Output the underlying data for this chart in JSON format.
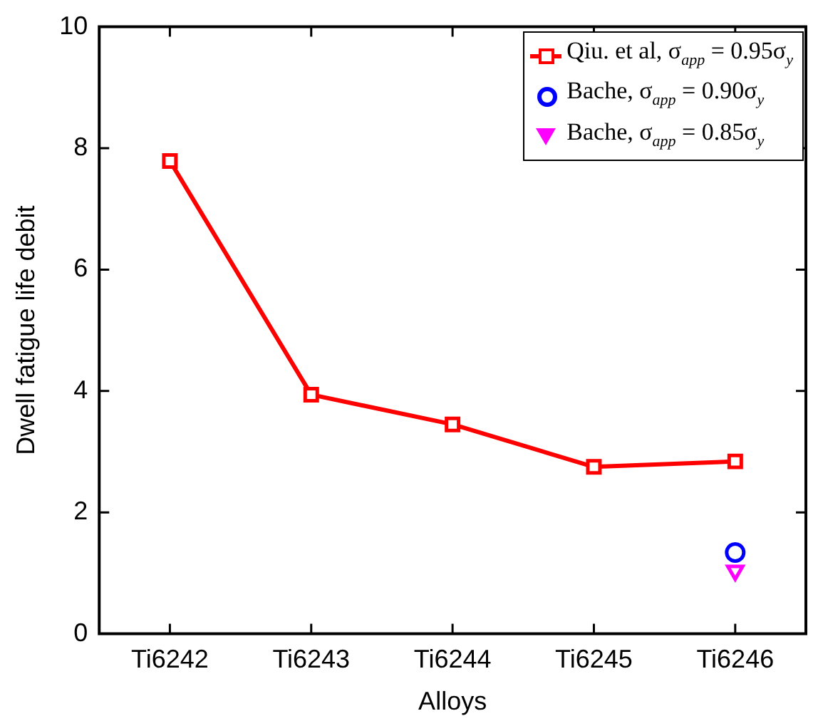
{
  "chart_data": {
    "type": "line",
    "xlabel": "Alloys",
    "ylabel": "Dwell fatigue life debit",
    "categories": [
      "Ti6242",
      "Ti6243",
      "Ti6244",
      "Ti6245",
      "Ti6246"
    ],
    "series": [
      {
        "name": "Qiu. et al, σ$_{app}$ = 0.95σ$_{y}$",
        "color": "#ff0000",
        "type": "line",
        "marker": "square",
        "values": [
          7.79,
          3.94,
          3.45,
          2.75,
          2.84
        ]
      },
      {
        "name": "Bache, σ$_{app}$ = 0.90σ$_{y}$",
        "color": "#0000ff",
        "type": "scatter",
        "marker": "circle",
        "values": [
          null,
          null,
          null,
          null,
          1.34
        ]
      },
      {
        "name": "Bache, σ$_{app}$ = 0.85σ$_{y}$",
        "color": "#ff00ff",
        "type": "scatter",
        "marker": "triangle",
        "values": [
          null,
          null,
          null,
          null,
          1.04
        ]
      }
    ],
    "ylim": [
      0,
      10
    ],
    "yticks": [
      0,
      2,
      4,
      6,
      8,
      10
    ],
    "grid": false,
    "legend": "top right"
  }
}
